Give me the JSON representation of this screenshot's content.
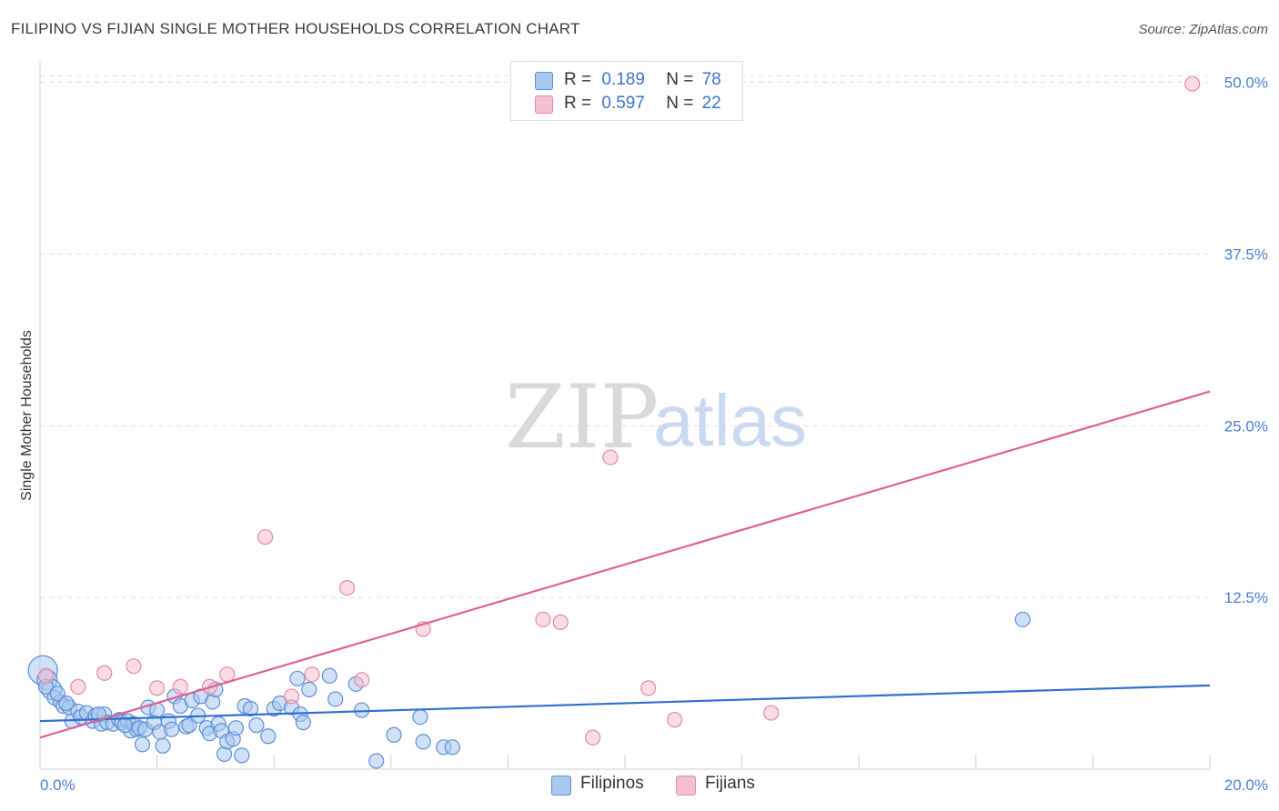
{
  "title": "FILIPINO VS FIJIAN SINGLE MOTHER HOUSEHOLDS CORRELATION CHART",
  "source": "Source: ZipAtlas.com",
  "watermark": {
    "zip": "ZIP",
    "atlas": "atlas"
  },
  "legend": {
    "rows": [
      {
        "r_label": "R =",
        "r_value": "0.189",
        "n_label": "N =",
        "n_value": "78"
      },
      {
        "r_label": "R =",
        "r_value": "0.597",
        "n_label": "N =",
        "n_value": "22"
      }
    ]
  },
  "bottom_legend": {
    "filipinos": "Filipinos",
    "fijians": "Fijians"
  },
  "colors": {
    "filipino_fill": "#a9c8f0",
    "filipino_stroke": "#5b8fd6",
    "filipino_line": "#2f6fd0",
    "fijian_fill": "#f6bfd0",
    "fijian_stroke": "#e58aa8",
    "fijian_line": "#e0608f",
    "tick_text": "#4a7fd0",
    "grid": "#dcdcdc"
  },
  "chart_data": {
    "type": "scatter",
    "title": "FILIPINO VS FIJIAN SINGLE MOTHER HOUSEHOLDS CORRELATION CHART",
    "xlabel": "",
    "ylabel": "Single Mother Households",
    "xlim": [
      0,
      20
    ],
    "ylim": [
      0,
      51.5
    ],
    "x_tick_labels": [
      "0.0%",
      "20.0%"
    ],
    "y_ticks": [
      12.5,
      25.0,
      37.5,
      50.0
    ],
    "y_tick_labels": [
      "12.5%",
      "25.0%",
      "37.5%",
      "50.0%"
    ],
    "grid": true,
    "legend_position": "top-center",
    "series": [
      {
        "name": "Filipinos",
        "r": 0.189,
        "n": 78,
        "trend": {
          "x": [
            0,
            20
          ],
          "y": [
            3.5,
            6.1
          ]
        },
        "points": [
          [
            0.05,
            7.2
          ],
          [
            0.12,
            6.5
          ],
          [
            0.2,
            5.8
          ],
          [
            0.25,
            5.2
          ],
          [
            0.35,
            4.9
          ],
          [
            0.4,
            4.6
          ],
          [
            0.5,
            4.5
          ],
          [
            0.55,
            3.5
          ],
          [
            0.65,
            4.2
          ],
          [
            0.7,
            3.8
          ],
          [
            0.8,
            4.1
          ],
          [
            0.9,
            3.5
          ],
          [
            0.95,
            3.9
          ],
          [
            1.05,
            3.3
          ],
          [
            1.1,
            4.0
          ],
          [
            1.15,
            3.4
          ],
          [
            1.25,
            3.3
          ],
          [
            1.35,
            3.6
          ],
          [
            1.4,
            3.4
          ],
          [
            1.5,
            3.5
          ],
          [
            1.55,
            2.8
          ],
          [
            1.6,
            3.3
          ],
          [
            1.65,
            2.9
          ],
          [
            1.7,
            3.0
          ],
          [
            1.75,
            1.8
          ],
          [
            1.8,
            2.9
          ],
          [
            1.85,
            4.5
          ],
          [
            1.95,
            3.4
          ],
          [
            2.0,
            4.3
          ],
          [
            2.05,
            2.7
          ],
          [
            2.1,
            1.7
          ],
          [
            2.2,
            3.5
          ],
          [
            2.25,
            2.9
          ],
          [
            2.3,
            5.3
          ],
          [
            2.4,
            4.6
          ],
          [
            2.5,
            3.1
          ],
          [
            2.55,
            3.2
          ],
          [
            2.6,
            5.0
          ],
          [
            2.7,
            3.9
          ],
          [
            2.75,
            5.3
          ],
          [
            2.85,
            3.0
          ],
          [
            2.9,
            2.6
          ],
          [
            2.95,
            4.9
          ],
          [
            3.0,
            5.8
          ],
          [
            3.05,
            3.3
          ],
          [
            3.1,
            2.8
          ],
          [
            3.15,
            1.1
          ],
          [
            3.2,
            2.0
          ],
          [
            3.3,
            2.2
          ],
          [
            3.35,
            3.0
          ],
          [
            3.45,
            1.0
          ],
          [
            3.5,
            4.6
          ],
          [
            3.6,
            4.4
          ],
          [
            3.7,
            3.2
          ],
          [
            3.9,
            2.4
          ],
          [
            4.0,
            4.4
          ],
          [
            4.1,
            4.8
          ],
          [
            4.3,
            4.5
          ],
          [
            4.4,
            6.6
          ],
          [
            4.45,
            4.0
          ],
          [
            4.5,
            3.4
          ],
          [
            4.6,
            5.8
          ],
          [
            4.95,
            6.8
          ],
          [
            5.05,
            5.1
          ],
          [
            5.4,
            6.2
          ],
          [
            5.5,
            4.3
          ],
          [
            5.75,
            0.6
          ],
          [
            6.05,
            2.5
          ],
          [
            6.5,
            3.8
          ],
          [
            6.55,
            2.0
          ],
          [
            6.9,
            1.6
          ],
          [
            7.05,
            1.6
          ],
          [
            16.8,
            10.9
          ],
          [
            0.1,
            6.0
          ],
          [
            0.3,
            5.5
          ],
          [
            0.45,
            4.8
          ],
          [
            1.0,
            4.0
          ],
          [
            1.45,
            3.2
          ]
        ]
      },
      {
        "name": "Fijians",
        "r": 0.597,
        "n": 22,
        "trend": {
          "x": [
            0,
            20
          ],
          "y": [
            2.3,
            27.5
          ]
        },
        "points": [
          [
            0.1,
            6.8
          ],
          [
            0.65,
            6.0
          ],
          [
            1.1,
            7.0
          ],
          [
            1.6,
            7.5
          ],
          [
            2.0,
            5.9
          ],
          [
            2.4,
            6.0
          ],
          [
            2.9,
            6.0
          ],
          [
            3.2,
            6.9
          ],
          [
            3.85,
            16.9
          ],
          [
            4.3,
            5.3
          ],
          [
            4.65,
            6.9
          ],
          [
            5.25,
            13.2
          ],
          [
            5.5,
            6.5
          ],
          [
            6.55,
            10.2
          ],
          [
            8.6,
            10.9
          ],
          [
            8.9,
            10.7
          ],
          [
            9.45,
            2.3
          ],
          [
            9.75,
            22.7
          ],
          [
            10.4,
            5.9
          ],
          [
            10.85,
            3.6
          ],
          [
            12.5,
            4.1
          ],
          [
            19.7,
            49.9
          ]
        ]
      }
    ]
  }
}
